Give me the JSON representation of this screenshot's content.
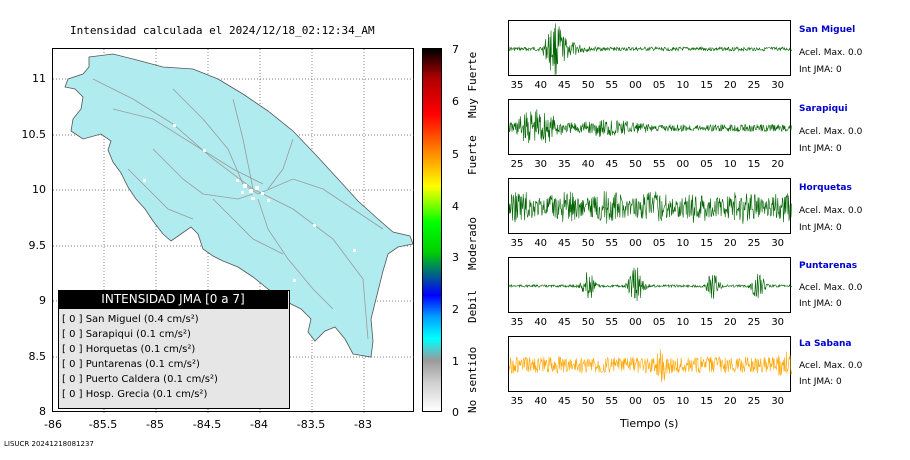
{
  "map": {
    "title": "Intensidad calculada el 2024/12/18_02:12:34_AM",
    "y_ticks": [
      "11",
      "10.5",
      "10",
      "9.5",
      "9",
      "8.5",
      "8"
    ],
    "x_ticks": [
      "-86",
      "-85.5",
      "-85",
      "-84.5",
      "-84",
      "-83.5",
      "-83"
    ],
    "land_color": "#b0ecef"
  },
  "legend": {
    "header": "INTENSIDAD JMA [0 a 7]",
    "items": [
      "[ 0 ]  San Miguel (0.4 cm/s²)",
      "[ 0 ]  Sarapiqui (0.1 cm/s²)",
      "[ 0 ]  Horquetas (0.1 cm/s²)",
      "[ 0 ]  Puntarenas (0.1 cm/s²)",
      "[ 0 ]  Puerto Caldera (0.1 cm/s²)",
      "[ 0 ]  Hosp. Grecia (0.1 cm/s²)"
    ]
  },
  "colorbar": {
    "ticks": [
      "7",
      "6",
      "5",
      "4",
      "3",
      "2",
      "1",
      "0"
    ],
    "labels": [
      "Muy Fuerte",
      "Fuerte",
      "Moderado",
      "Debil",
      "No sentido"
    ]
  },
  "stations": [
    {
      "name": "San Miguel",
      "acel": "Acel. Max. 0.0",
      "int": "Int JMA: 0",
      "ticks": [
        "35",
        "40",
        "45",
        "50",
        "55",
        "00",
        "05",
        "10",
        "15",
        "20",
        "25",
        "30"
      ],
      "color": "#006400"
    },
    {
      "name": "Sarapiqui",
      "acel": "Acel. Max. 0.0",
      "int": "Int JMA: 0",
      "ticks": [
        "25",
        "30",
        "35",
        "40",
        "45",
        "50",
        "55",
        "00",
        "05",
        "10",
        "15",
        "20"
      ],
      "color": "#006400"
    },
    {
      "name": "Horquetas",
      "acel": "Acel. Max. 0.0",
      "int": "Int JMA: 0",
      "ticks": [
        "35",
        "40",
        "45",
        "50",
        "55",
        "00",
        "05",
        "10",
        "15",
        "20",
        "25",
        "30"
      ],
      "color": "#006400"
    },
    {
      "name": "Puntarenas",
      "acel": "Acel. Max. 0.0",
      "int": "Int JMA: 0",
      "ticks": [
        "35",
        "40",
        "45",
        "50",
        "55",
        "00",
        "05",
        "10",
        "15",
        "20",
        "25",
        "30"
      ],
      "color": "#006400"
    },
    {
      "name": "La Sabana",
      "acel": "Acel. Max. 0.0",
      "int": "Int JMA: 0",
      "ticks": [
        "35",
        "40",
        "45",
        "50",
        "55",
        "00",
        "05",
        "10",
        "15",
        "20",
        "25",
        "30"
      ],
      "color": "#ffa500"
    }
  ],
  "time_axis_label": "Tiempo (s)",
  "footer": "LISUCR 20241218081237"
}
